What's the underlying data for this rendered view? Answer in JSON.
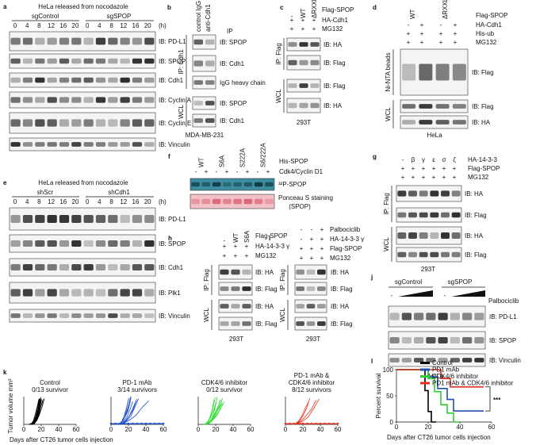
{
  "a": {
    "letter": "a",
    "title": "HeLa released from nocodazole",
    "groups": [
      "sgControl",
      "sgSPOP"
    ],
    "times": [
      "0",
      "4",
      "8",
      "12",
      "16",
      "20",
      "0",
      "4",
      "8",
      "12",
      "16",
      "20"
    ],
    "unit": "(h)",
    "blots": [
      "IB: PD-L1",
      "IB: SPOP",
      "IB: Cdh1",
      "IB: Cyclin A",
      "IB: Cyclin E",
      "IB: Vinculin"
    ]
  },
  "b": {
    "letter": "b",
    "lanes": [
      "control IgG",
      "anti-Cdh1"
    ],
    "header": "IP",
    "sides": [
      "IP: Cdh1",
      "WCL"
    ],
    "blots": [
      "IB: SPOP",
      "IB: Cdh1",
      "IgG heavy chain",
      "IB: SPOP",
      "IB: Cdh1"
    ],
    "cell": "MDA-MB-231"
  },
  "c": {
    "letter": "c",
    "lanes": [
      "-",
      "WT",
      "ΔRXXL"
    ],
    "lane_label": "Flag-SPOP",
    "rows": [
      {
        "label": "HA-Cdh1",
        "signs": [
          "+",
          "+",
          "+"
        ]
      },
      {
        "label": "MG132",
        "signs": [
          "+",
          "+",
          "+"
        ]
      }
    ],
    "sides": [
      "IP: Flag",
      "WCL"
    ],
    "blots": [
      "IB: HA",
      "IB: Flag",
      "IB: Flag",
      "IB: HA"
    ],
    "cell": "293T"
  },
  "d": {
    "letter": "d",
    "lanes": [
      "WT",
      "ΔRXXL"
    ],
    "lane_label": "Flag-SPOP",
    "rows": [
      {
        "label": "HA-Cdh1",
        "signs": [
          "-",
          "+",
          "-",
          "+"
        ]
      },
      {
        "label": "His-ub",
        "signs": [
          "+",
          "+",
          "+",
          "+"
        ]
      },
      {
        "label": "MG132",
        "signs": [
          "+",
          "+",
          "+",
          "+"
        ]
      }
    ],
    "sides": [
      "Ni-NTA beads",
      "WCL"
    ],
    "blots": [
      "IB: Flag",
      "IB: Flag",
      "IB: HA"
    ],
    "cell": "HeLa"
  },
  "e": {
    "letter": "e",
    "title": "HeLa released from nocodazole",
    "groups": [
      "shScr",
      "shCdh1"
    ],
    "times": [
      "0",
      "4",
      "8",
      "12",
      "16",
      "20",
      "0",
      "4",
      "8",
      "12",
      "16",
      "20"
    ],
    "unit": "(h)",
    "blots": [
      "IB: PD-L1",
      "IB: SPOP",
      "IB: Cdh1",
      "IB: Plk1",
      "IB: Vinculin"
    ]
  },
  "f": {
    "letter": "f",
    "lanes": [
      "WT",
      "S6A",
      "S222A",
      "S6/222A"
    ],
    "lane_label": "His-SPOP",
    "rows": [
      {
        "label": "Cdk4/Cyclin D1",
        "signs": [
          "-",
          "+",
          "-",
          "+",
          "-",
          "+",
          "-",
          "+"
        ]
      }
    ],
    "blots": [
      "³²P-SPOP",
      "Ponceau S staining",
      "(SPOP)"
    ]
  },
  "g": {
    "letter": "g",
    "lanes": [
      "-",
      "β",
      "γ",
      "ε",
      "σ",
      "ζ"
    ],
    "lane_label": "HA-14-3-3",
    "rows": [
      {
        "label": "Flag-SPOP",
        "signs": [
          "+",
          "+",
          "+",
          "+",
          "+",
          "+"
        ]
      },
      {
        "label": "MG132",
        "signs": [
          "+",
          "+",
          "+",
          "+",
          "+",
          "+"
        ]
      }
    ],
    "sides": [
      "IP: Flag",
      "WCL"
    ],
    "blots": [
      "IB: HA",
      "IB: Flag",
      "IB: HA",
      "IB: Flag"
    ],
    "cell": "293T"
  },
  "h": {
    "letter": "h",
    "lanes": [
      "-",
      "WT",
      "S6A"
    ],
    "lane_label": "Flag-SPOP",
    "rows": [
      {
        "label": "HA-14-3-3 γ",
        "signs": [
          "+",
          "+",
          "+"
        ]
      },
      {
        "label": "MG132",
        "signs": [
          "+",
          "+",
          "+"
        ]
      }
    ],
    "sides": [
      "IP: Flag",
      "WCL"
    ],
    "blots": [
      "IB: HA",
      "IB: Flag",
      "IB: HA",
      "IB: Flag"
    ],
    "cell": "293T"
  },
  "i": {
    "letter": "i",
    "rows": [
      {
        "label": "Palbociclib",
        "signs": [
          "-",
          "-",
          "+"
        ]
      },
      {
        "label": "HA-14-3-3 γ",
        "signs": [
          "-",
          "+",
          "+"
        ]
      },
      {
        "label": "Flag-SPOP",
        "signs": [
          "+",
          "+",
          "+"
        ]
      },
      {
        "label": "MG132",
        "signs": [
          "+",
          "+",
          "+"
        ]
      }
    ],
    "sides": [
      "IP: Flag",
      "WCL"
    ],
    "blots": [
      "IB: HA",
      "IB: Flag",
      "IB: HA",
      "IB: Flag"
    ],
    "cell": "293T"
  },
  "j": {
    "letter": "j",
    "groups": [
      "sgControl",
      "sgSPOP"
    ],
    "signs": [
      "-",
      "-"
    ],
    "treatment": "Palbociclib",
    "blots": [
      "IB: PD-L1",
      "IB: SPOP",
      "IB: Vinculin"
    ],
    "cell": "HeLa"
  },
  "k": {
    "letter": "k",
    "ylabel": "Tumor volume mm³",
    "xlabel": "Days after CT26 tumor cells injection",
    "xticks": [
      "0",
      "20",
      "40",
      "60"
    ],
    "plots": [
      {
        "title": [
          "Control",
          "0/13 survivor"
        ],
        "color": "#000000"
      },
      {
        "title": [
          "PD-1 mAb",
          "3/14 survivors"
        ],
        "color": "#1f4fd0"
      },
      {
        "title": [
          "CDK4/6 inhibitor",
          "0/12 survivor"
        ],
        "color": "#33dd33"
      },
      {
        "title": [
          "PD-1 mAb &",
          "CDK4/6 inhibitor",
          "8/12 survivors"
        ],
        "color": "#e8321e"
      }
    ]
  },
  "l": {
    "letter": "l",
    "ylabel": "Percent survival",
    "xlabel": "Days after CT26 tumor cells injection",
    "yticks": [
      "0",
      "50",
      "100"
    ],
    "xticks": [
      "0",
      "20",
      "40",
      "60"
    ],
    "significance": "***",
    "legend": [
      {
        "name": "Control",
        "color": "#000000"
      },
      {
        "name": "PD1 mAb",
        "color": "#1f4fb0"
      },
      {
        "name": "CDK4/6 inhibitor",
        "color": "#33cc33"
      },
      {
        "name": "PD1 mAb & CDK4/6 inhibitor",
        "color": "#e0321e"
      }
    ]
  }
}
